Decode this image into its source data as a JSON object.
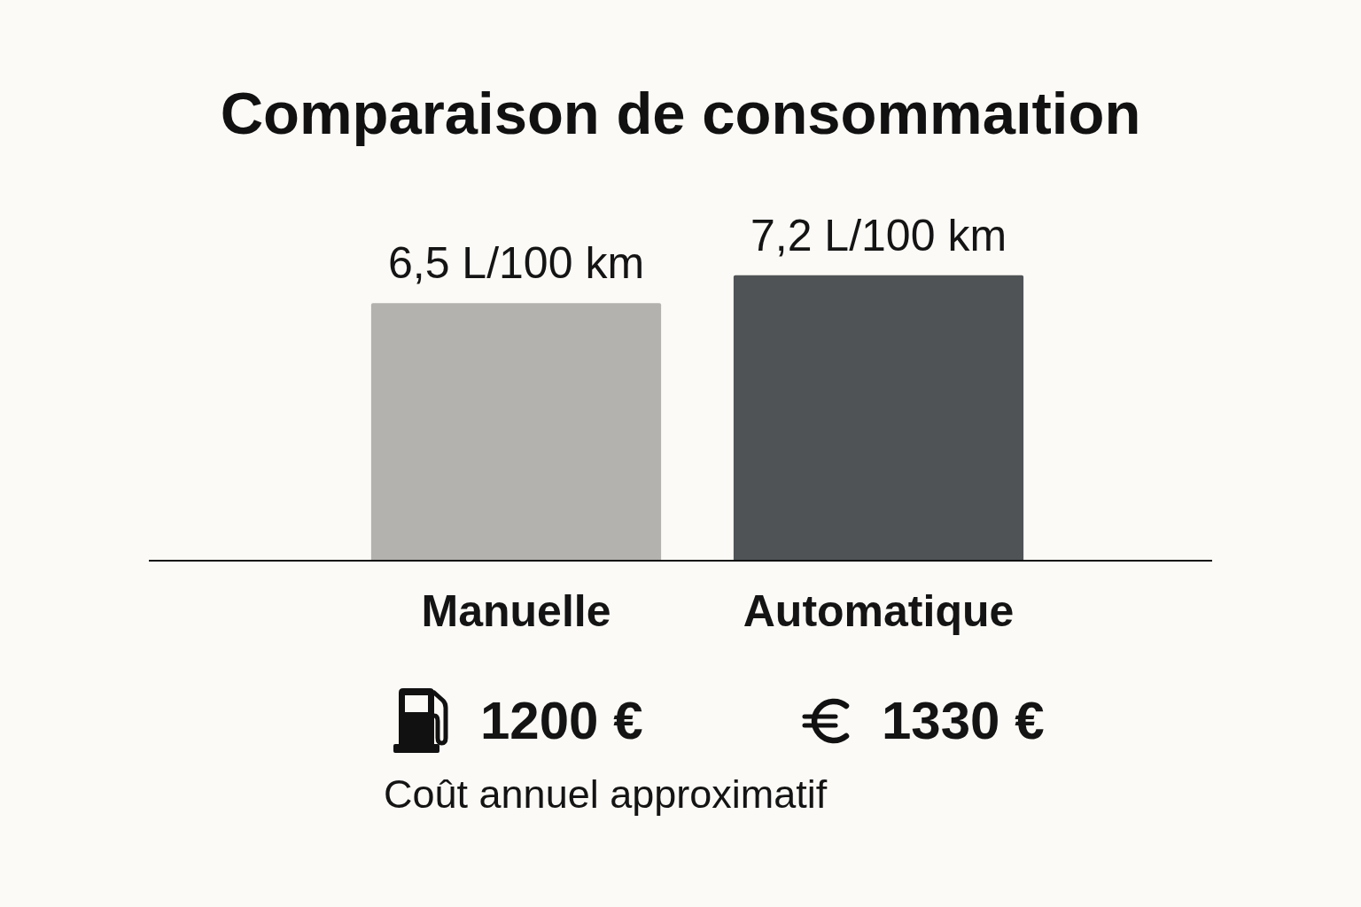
{
  "chart_data": {
    "type": "bar",
    "title": "Comparaison de consommaıtion",
    "categories": [
      "Manuelle",
      "Automatique"
    ],
    "values": [
      6.5,
      7.2
    ],
    "colors": [
      "#b3b2ae",
      "#4f5356"
    ],
    "value_labels": [
      "6,5 L/100 km",
      "7,2 L/100 km"
    ],
    "tick_labels": "x",
    "annotations": [
      "1200 €",
      "1330 €",
      "Coût annuel approximatif"
    ]
  }
}
